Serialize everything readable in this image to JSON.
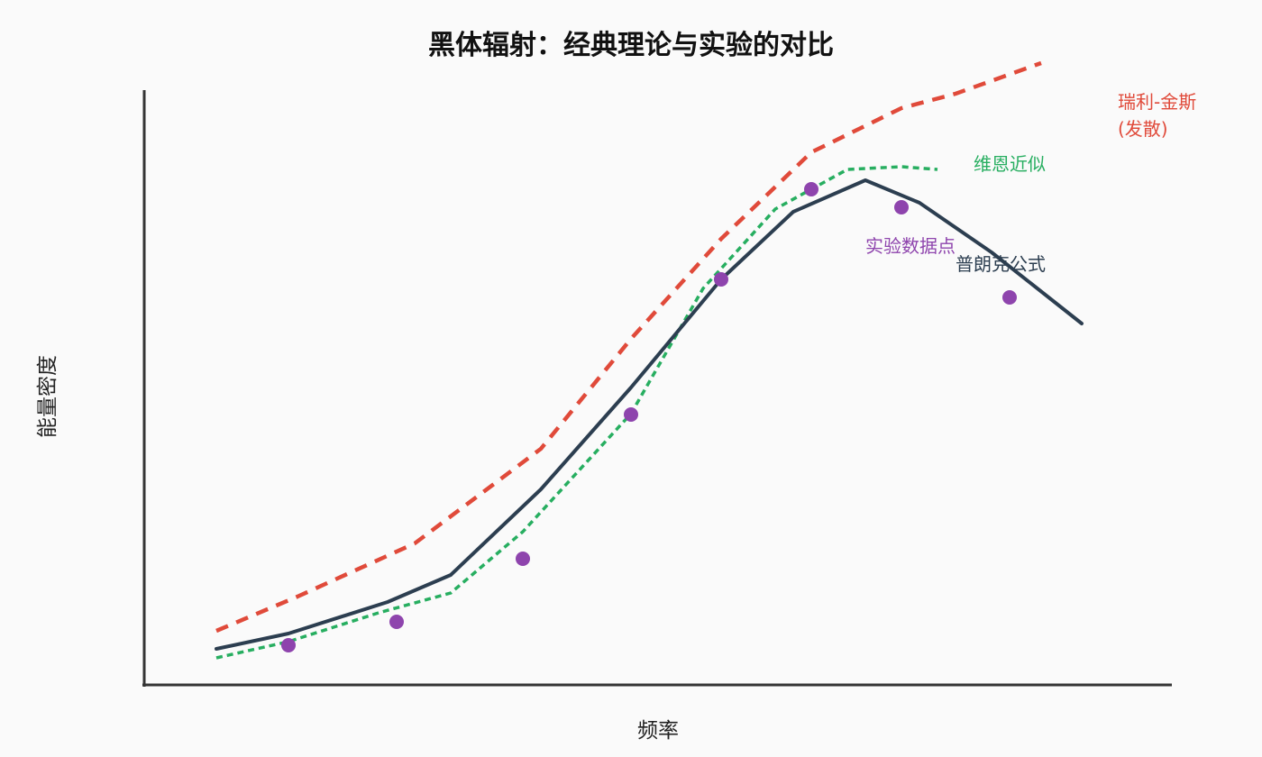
{
  "chart_data": {
    "type": "line",
    "title": "黑体辐射：经典理论与实验的对比",
    "xlabel": "频率",
    "ylabel": "能量密度",
    "xlim": [
      0,
      1140
    ],
    "ylim": [
      0,
      660
    ],
    "show_ticks": false,
    "grid": false,
    "legend": "inline labels",
    "series": [
      {
        "key": "rayleigh",
        "label_lines": [
          "瑞利-金斯",
          "(发散)"
        ],
        "style": "dashed",
        "color": "#e04a3a",
        "x": [
          80,
          170,
          300,
          440,
          540,
          640,
          740,
          840,
          900,
          995
        ],
        "y": [
          60,
          98,
          157,
          262,
          384,
          495,
          591,
          640,
          656,
          690
        ]
      },
      {
        "key": "wien",
        "label_lines": [
          "维恩近似"
        ],
        "style": "dotted",
        "color": "#27ae60",
        "x": [
          80,
          160,
          260,
          340,
          420,
          540,
          620,
          700,
          780,
          840,
          880
        ],
        "y": [
          30,
          48,
          80,
          102,
          170,
          301,
          440,
          528,
          572,
          575,
          572
        ]
      },
      {
        "key": "planck",
        "label_lines": [
          "普朗克公式"
        ],
        "style": "solid",
        "color": "#2c3e50",
        "x": [
          80,
          160,
          270,
          340,
          440,
          540,
          640,
          720,
          800,
          860,
          940,
          1040
        ],
        "y": [
          40,
          57,
          92,
          122,
          217,
          330,
          450,
          525,
          560,
          535,
          480,
          401
        ]
      },
      {
        "key": "experiment",
        "label_lines": [
          "实验数据点"
        ],
        "style": "points",
        "color": "#8e44ad",
        "x": [
          160,
          280,
          420,
          540,
          640,
          740,
          840,
          960
        ],
        "y": [
          44,
          70,
          140,
          300,
          450,
          550,
          530,
          430
        ]
      }
    ]
  }
}
